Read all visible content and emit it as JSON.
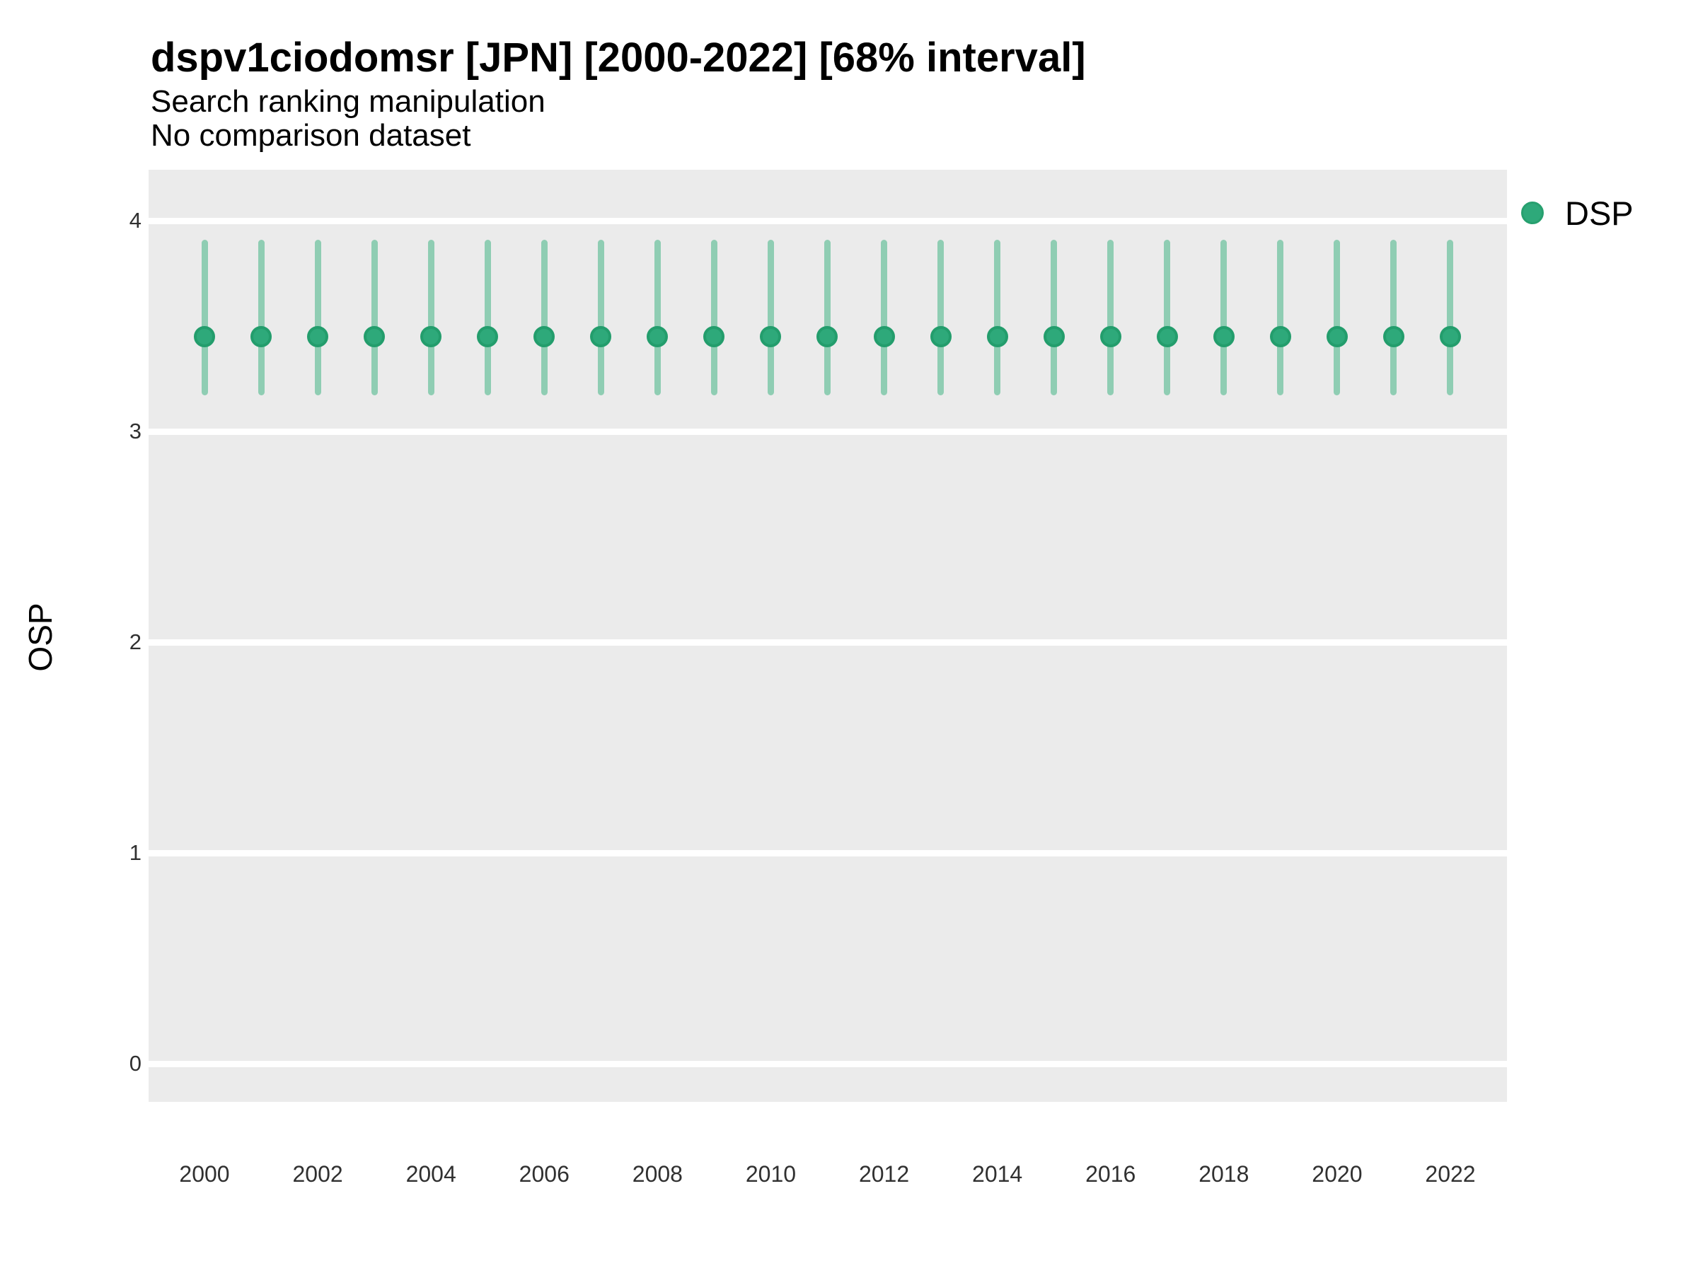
{
  "header": {
    "title": "dspv1ciodomsr [JPN] [2000-2022] [68% interval]",
    "subtitle1": "Search ranking manipulation",
    "subtitle2": "No comparison dataset"
  },
  "y_axis": {
    "label": "OSP"
  },
  "legend": {
    "items": [
      {
        "label": "DSP",
        "color": "#2EA97A",
        "edge_color": "#27A06F"
      }
    ]
  },
  "colors": {
    "panel_background": "#EBEBEB",
    "gridline": "#FFFFFF",
    "point_fill": "#2EA97A",
    "point_edge": "#239D6C",
    "interval_bar": "#8FCDB3",
    "title_text": "#000000",
    "tick_text": "#303030"
  },
  "chart_data": {
    "type": "scatter",
    "subtype": "pointrange",
    "title": "dspv1ciodomsr [JPN] [2000-2022] [68% interval]",
    "subtitle": "Search ranking manipulation",
    "note": "No comparison dataset",
    "xlabel": "",
    "ylabel": "OSP",
    "interval": "68%",
    "x": [
      2000,
      2001,
      2002,
      2003,
      2004,
      2005,
      2006,
      2007,
      2008,
      2009,
      2010,
      2011,
      2012,
      2013,
      2014,
      2015,
      2016,
      2017,
      2018,
      2019,
      2020,
      2021,
      2022
    ],
    "series": [
      {
        "name": "DSP",
        "mid": [
          3.45,
          3.45,
          3.45,
          3.45,
          3.45,
          3.45,
          3.45,
          3.45,
          3.45,
          3.45,
          3.45,
          3.45,
          3.45,
          3.45,
          3.45,
          3.45,
          3.45,
          3.45,
          3.45,
          3.45,
          3.45,
          3.45,
          3.45
        ],
        "lo": [
          3.17,
          3.17,
          3.17,
          3.17,
          3.17,
          3.17,
          3.17,
          3.17,
          3.17,
          3.17,
          3.17,
          3.17,
          3.17,
          3.17,
          3.17,
          3.17,
          3.17,
          3.17,
          3.17,
          3.17,
          3.17,
          3.17,
          3.17
        ],
        "hi": [
          3.91,
          3.91,
          3.91,
          3.91,
          3.91,
          3.91,
          3.91,
          3.91,
          3.91,
          3.91,
          3.91,
          3.91,
          3.91,
          3.91,
          3.91,
          3.91,
          3.91,
          3.91,
          3.91,
          3.91,
          3.91,
          3.91,
          3.91
        ]
      }
    ],
    "ylim": [
      -0.18,
      4.24
    ],
    "xlim": [
      1999,
      2023
    ],
    "y_ticks": [
      0,
      1,
      2,
      3,
      4
    ],
    "x_ticks": [
      2000,
      2002,
      2004,
      2006,
      2008,
      2010,
      2012,
      2014,
      2016,
      2018,
      2020,
      2022
    ],
    "grid": "horizontal-major-only",
    "legend_position": "right"
  }
}
